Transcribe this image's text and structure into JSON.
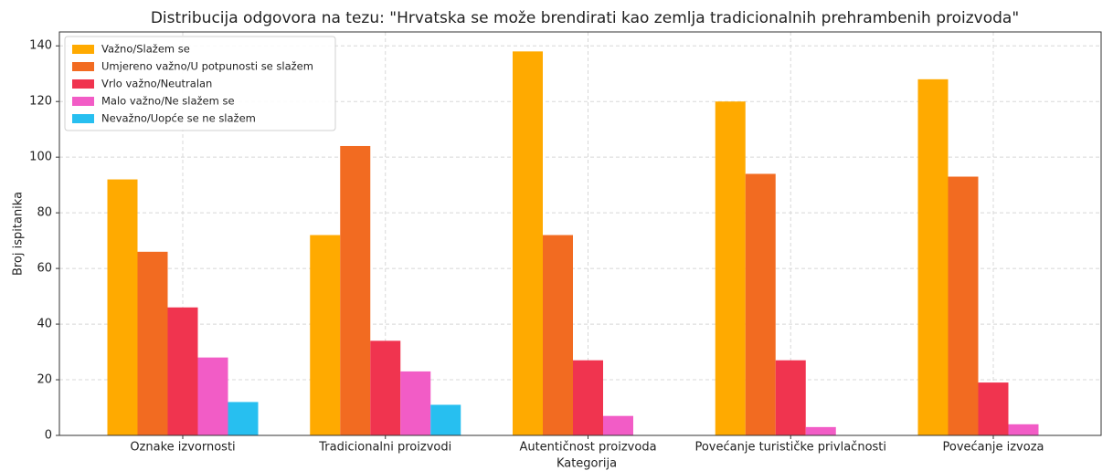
{
  "chart_data": {
    "type": "bar",
    "title": "Distribucija odgovora na tezu: \"Hrvatska se može brendirati kao zemlja tradicionalnih prehrambenih proizvoda\"",
    "xlabel": "Kategorija",
    "ylabel": "Broj ispitanika",
    "categories": [
      "Oznake izvornosti",
      "Tradicionalni proizvodi",
      "Autentičnost proizvoda",
      "Povećanje turističke privlačnosti",
      "Povećanje izvoza"
    ],
    "series": [
      {
        "name": "Važno/Slažem se",
        "color": "#FFAA00",
        "values": [
          92,
          72,
          138,
          120,
          128
        ]
      },
      {
        "name": "Umjereno važno/U potpunosti se slažem",
        "color": "#F26B21",
        "values": [
          66,
          104,
          72,
          94,
          93
        ]
      },
      {
        "name": "Vrlo važno/Neutralan",
        "color": "#F0344F",
        "values": [
          46,
          34,
          27,
          27,
          19
        ]
      },
      {
        "name": "Malo važno/Ne slažem se",
        "color": "#F25CC6",
        "values": [
          28,
          23,
          7,
          3,
          4
        ]
      },
      {
        "name": "Nevažno/Uopće se ne slažem",
        "color": "#27BFF0",
        "values": [
          12,
          11,
          0,
          0,
          0
        ]
      }
    ],
    "ylim": [
      0,
      145
    ],
    "yticks": [
      0,
      20,
      40,
      60,
      80,
      100,
      120,
      140
    ],
    "grid": true,
    "legend": "upper left"
  }
}
